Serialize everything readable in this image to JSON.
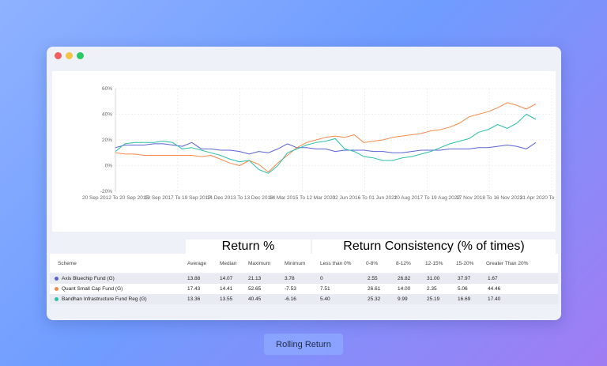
{
  "chart_data": {
    "type": "line",
    "ylim": [
      -20,
      60
    ],
    "yticks": [
      "-20%",
      "0%",
      "20%",
      "40%",
      "60%"
    ],
    "x_tick_labels": [
      "20 Sep 2012 To 20 Sep 2015",
      "19 Sep 2017 To 19 Sep 2017",
      "14 Dec 2013 To 13 Dec 2018",
      "14 Mar 2015 To 12 Mar 2020",
      "02 Jun 2016 To 01 Jun 2021",
      "20 Aug 2017 To 19 Aug 2022",
      "17 Nov 2018 To 16 Nov 2023",
      "21 Apr 2020 To 20 Apr 2025"
    ],
    "series": [
      {
        "color": "#5b63d4",
        "values": [
          14,
          16,
          16,
          16,
          17,
          17,
          16,
          15,
          18,
          13,
          13,
          12,
          12,
          11,
          9,
          11,
          10,
          13,
          17,
          14,
          14,
          13,
          13,
          11,
          12,
          12,
          12,
          11,
          11,
          10,
          10,
          11,
          12,
          12,
          12,
          13,
          13,
          13,
          14,
          14,
          15,
          16,
          15,
          13,
          18
        ]
      },
      {
        "color": "#f58a4b",
        "values": [
          10,
          9,
          9,
          8,
          8,
          8,
          8,
          8,
          8,
          7,
          8,
          5,
          2,
          0,
          4,
          1,
          -5,
          2,
          8,
          14,
          18,
          20,
          22,
          23,
          22,
          24,
          18,
          19,
          20,
          22,
          23,
          24,
          25,
          27,
          28,
          30,
          33,
          38,
          40,
          42,
          45,
          49,
          47,
          44,
          48
        ]
      },
      {
        "color": "#2bbfa8",
        "values": [
          11,
          17,
          18,
          18,
          18,
          19,
          18,
          13,
          14,
          12,
          10,
          8,
          5,
          3,
          4,
          -3,
          -6,
          0,
          10,
          13,
          16,
          18,
          19,
          21,
          13,
          11,
          7,
          6,
          4,
          4,
          6,
          7,
          9,
          11,
          14,
          17,
          19,
          21,
          26,
          28,
          32,
          29,
          33,
          40,
          36
        ]
      }
    ]
  },
  "table": {
    "groups": [
      "Return %",
      "Return Consistency (% of times)"
    ],
    "headers": [
      "Scheme",
      "Average",
      "Median",
      "Maximum",
      "Minimum",
      "Less than 0%",
      "0-8%",
      "8-12%",
      "12-15%",
      "15-20%",
      "Greater Than 20%"
    ],
    "rows": [
      {
        "color": "#5b63d4",
        "cells": [
          "Axis Bluechip Fund (G)",
          "13.88",
          "14.07",
          "21.13",
          "3.78",
          "0",
          "2.55",
          "26.82",
          "31.00",
          "37.97",
          "1.67"
        ]
      },
      {
        "color": "#f58a4b",
        "cells": [
          "Quant Small Cap Fund (G)",
          "17.43",
          "14.41",
          "52.65",
          "-7.53",
          "7.51",
          "26.61",
          "14.00",
          "2.35",
          "5.06",
          "44.46"
        ]
      },
      {
        "color": "#2bbfa8",
        "cells": [
          "Bandhan Infrastructure Fund Reg (G)",
          "13.36",
          "13.55",
          "40.45",
          "-6.16",
          "5.40",
          "25.32",
          "9.99",
          "25.19",
          "16.69",
          "17.40"
        ]
      }
    ]
  },
  "caption": "Rolling Return"
}
